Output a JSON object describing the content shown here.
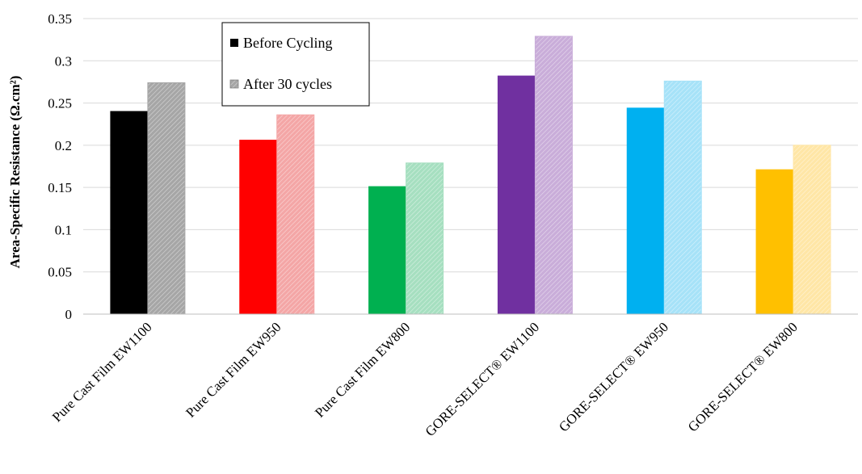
{
  "chart_data": {
    "type": "bar",
    "title": "",
    "xlabel": "",
    "ylabel": "Area-Specific Resistance (Ω.cm²)",
    "ylim": [
      0,
      0.35
    ],
    "yticks": [
      "0",
      "0.05",
      "0.1",
      "0.15",
      "0.2",
      "0.25",
      "0.3",
      "0.35"
    ],
    "grid": true,
    "legend_position": "top-center",
    "categories": [
      "Pure Cast Film EW1100",
      "Pure Cast Film EW950",
      "Pure Cast Film EW800",
      "GORE-SELECT® EW1100",
      "GORE-SELECT® EW950",
      "GORE-SELECT® EW800"
    ],
    "series": [
      {
        "name": "Before Cycling",
        "values": [
          0.24,
          0.206,
          0.151,
          0.282,
          0.244,
          0.171
        ],
        "pattern": "solid"
      },
      {
        "name": "After 30 cycles",
        "values": [
          0.274,
          0.236,
          0.179,
          0.329,
          0.276,
          0.2
        ],
        "pattern": "hatched"
      }
    ],
    "colors": {
      "solid": [
        "#000000",
        "#ff0000",
        "#00b050",
        "#7030a0",
        "#00b0f0",
        "#ffc000"
      ],
      "hatched": [
        "#a6a6a6",
        "#f4a6a6",
        "#a6dfc0",
        "#c9add9",
        "#a6e2f8",
        "#ffe6a6"
      ]
    },
    "legend_colors": [
      "#000000",
      "#a6a6a6"
    ]
  }
}
